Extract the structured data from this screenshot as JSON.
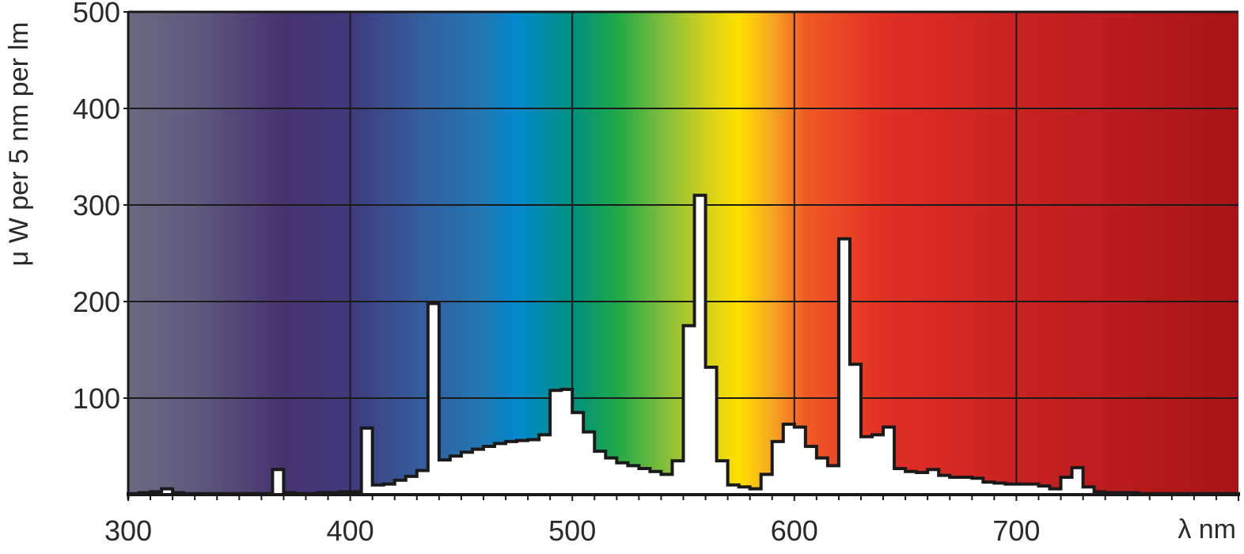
{
  "chart_data": {
    "type": "area",
    "title": "",
    "xlabel": "λ nm",
    "ylabel": "μ W per 5 nm per lm",
    "xlim": [
      300,
      800
    ],
    "ylim": [
      0,
      500
    ],
    "x_ticks": [
      300,
      400,
      500,
      600,
      700
    ],
    "y_ticks": [
      100,
      200,
      300,
      400,
      500
    ],
    "grid": true,
    "background": "visible spectrum colour gradient",
    "spectrum_colors": [
      {
        "nm": 300,
        "color": "#6a6a80"
      },
      {
        "nm": 330,
        "color": "#5f5a7e"
      },
      {
        "nm": 370,
        "color": "#45336e"
      },
      {
        "nm": 400,
        "color": "#3f3a7c"
      },
      {
        "nm": 430,
        "color": "#355c9c"
      },
      {
        "nm": 460,
        "color": "#2277b4"
      },
      {
        "nm": 475,
        "color": "#0088cc"
      },
      {
        "nm": 500,
        "color": "#009080"
      },
      {
        "nm": 520,
        "color": "#1ea848"
      },
      {
        "nm": 540,
        "color": "#7cbd3c"
      },
      {
        "nm": 560,
        "color": "#d2d01c"
      },
      {
        "nm": 575,
        "color": "#ffe000"
      },
      {
        "nm": 590,
        "color": "#f7a622"
      },
      {
        "nm": 605,
        "color": "#f05a24"
      },
      {
        "nm": 640,
        "color": "#e03024"
      },
      {
        "nm": 700,
        "color": "#c82222"
      },
      {
        "nm": 800,
        "color": "#a81416"
      }
    ],
    "series": [
      {
        "bin_width_nm": 5,
        "x": [
          300,
          305,
          310,
          315,
          320,
          325,
          330,
          335,
          340,
          345,
          350,
          355,
          360,
          365,
          370,
          375,
          380,
          385,
          390,
          395,
          400,
          405,
          410,
          415,
          420,
          425,
          430,
          435,
          440,
          445,
          450,
          455,
          460,
          465,
          470,
          475,
          480,
          485,
          490,
          495,
          500,
          505,
          510,
          515,
          520,
          525,
          530,
          535,
          540,
          545,
          550,
          555,
          560,
          565,
          570,
          575,
          580,
          585,
          590,
          595,
          600,
          605,
          610,
          615,
          620,
          625,
          630,
          635,
          640,
          645,
          650,
          655,
          660,
          665,
          670,
          675,
          680,
          685,
          690,
          695,
          700,
          705,
          710,
          715,
          720,
          725,
          730,
          735,
          740,
          745,
          750,
          755,
          760,
          765,
          770,
          775,
          780,
          785,
          790,
          795
        ],
        "values": [
          1,
          2,
          3,
          6,
          2,
          1,
          1,
          1,
          1,
          1,
          1,
          1,
          1,
          26,
          2,
          1,
          1,
          2,
          2,
          3,
          3,
          69,
          10,
          11,
          15,
          19,
          25,
          198,
          36,
          40,
          44,
          47,
          50,
          53,
          55,
          56,
          57,
          62,
          108,
          109,
          85,
          65,
          45,
          38,
          33,
          30,
          27,
          24,
          21,
          35,
          175,
          310,
          132,
          35,
          10,
          8,
          6,
          21,
          55,
          73,
          70,
          50,
          38,
          30,
          265,
          135,
          60,
          62,
          70,
          27,
          24,
          23,
          26,
          20,
          18,
          18,
          17,
          13,
          12,
          11,
          11,
          11,
          9,
          6,
          18,
          28,
          8,
          3,
          2,
          2,
          2,
          1,
          1,
          1,
          1,
          1,
          1,
          1,
          1,
          1
        ]
      }
    ]
  }
}
